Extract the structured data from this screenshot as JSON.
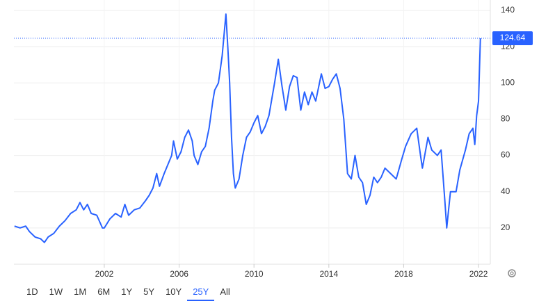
{
  "chart_data": {
    "type": "line",
    "x": [
      1997.2,
      1997.5,
      1997.8,
      1998.0,
      1998.3,
      1998.6,
      1998.8,
      1999.0,
      1999.3,
      1999.6,
      1999.9,
      2000.2,
      2000.5,
      2000.7,
      2000.9,
      2001.1,
      2001.3,
      2001.6,
      2001.9,
      2002.0,
      2002.3,
      2002.6,
      2002.9,
      2003.1,
      2003.3,
      2003.6,
      2003.9,
      2004.2,
      2004.4,
      2004.6,
      2004.8,
      2004.95,
      2005.2,
      2005.4,
      2005.6,
      2005.7,
      2005.9,
      2006.1,
      2006.3,
      2006.5,
      2006.7,
      2006.8,
      2007.0,
      2007.2,
      2007.4,
      2007.6,
      2007.8,
      2007.9,
      2008.1,
      2008.3,
      2008.5,
      2008.6,
      2008.7,
      2008.8,
      2008.9,
      2009.0,
      2009.2,
      2009.4,
      2009.6,
      2009.8,
      2010.0,
      2010.2,
      2010.4,
      2010.6,
      2010.8,
      2010.9,
      2011.1,
      2011.3,
      2011.5,
      2011.7,
      2011.9,
      2012.1,
      2012.3,
      2012.5,
      2012.7,
      2012.9,
      2013.1,
      2013.3,
      2013.6,
      2013.8,
      2014.0,
      2014.2,
      2014.4,
      2014.6,
      2014.8,
      2015.0,
      2015.2,
      2015.4,
      2015.6,
      2015.8,
      2016.0,
      2016.2,
      2016.4,
      2016.6,
      2016.8,
      2017.0,
      2017.3,
      2017.6,
      2017.9,
      2018.1,
      2018.4,
      2018.7,
      2018.9,
      2019.0,
      2019.3,
      2019.5,
      2019.8,
      2020.0,
      2020.2,
      2020.3,
      2020.5,
      2020.8,
      2021.0,
      2021.3,
      2021.5,
      2021.7,
      2021.8,
      2021.9,
      2022.0,
      2022.1
    ],
    "series": [
      {
        "color": "#2962ff",
        "values": [
          21,
          20,
          21,
          18,
          15,
          14,
          12,
          15,
          17,
          21,
          24,
          28,
          30,
          34,
          30,
          33,
          28,
          27,
          20,
          20,
          25,
          28,
          26,
          33,
          27,
          30,
          31,
          35,
          38,
          42,
          50,
          43,
          50,
          55,
          60,
          68,
          58,
          62,
          70,
          74,
          68,
          60,
          55,
          62,
          65,
          75,
          90,
          96,
          100,
          115,
          138,
          120,
          100,
          70,
          50,
          42,
          47,
          60,
          70,
          73,
          78,
          82,
          72,
          76,
          82,
          88,
          100,
          113,
          98,
          85,
          98,
          104,
          103,
          85,
          95,
          88,
          95,
          90,
          105,
          97,
          98,
          102,
          105,
          97,
          80,
          50,
          47,
          60,
          48,
          45,
          33,
          38,
          48,
          45,
          48,
          53,
          50,
          47,
          58,
          65,
          72,
          75,
          60,
          53,
          70,
          63,
          60,
          63,
          35,
          20,
          40,
          40,
          52,
          63,
          72,
          75,
          66,
          82,
          90,
          124.64
        ]
      }
    ],
    "xlim": [
      1997.17,
      2022.63
    ],
    "ylim": [
      0,
      140
    ],
    "xticks": [
      2002,
      2006,
      2010,
      2014,
      2018,
      2022
    ],
    "yticks": [
      20,
      40,
      60,
      80,
      100,
      120,
      140
    ],
    "grid": true,
    "range_buttons": [
      "1D",
      "1W",
      "1M",
      "6M",
      "1Y",
      "5Y",
      "10Y",
      "25Y",
      "All"
    ],
    "active_range": 7
  }
}
